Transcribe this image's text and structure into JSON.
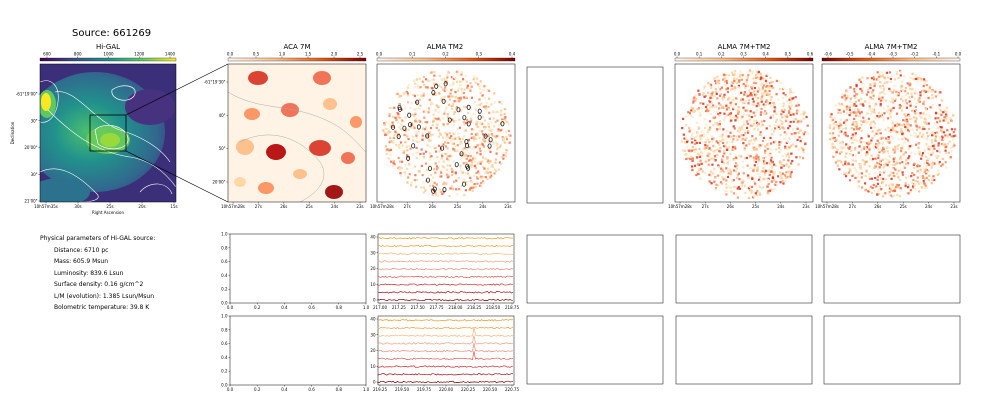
{
  "header": {
    "source": "Source: 661269"
  },
  "panels": {
    "higal": {
      "title": "Hi-GAL",
      "cbar_ticks": [
        "600",
        "800",
        "1000",
        "1200",
        "1400"
      ],
      "y_ticks": [
        "-61°19'00\"",
        "30\"",
        "20'00\"",
        "30\"",
        "21'00\""
      ],
      "x_ticks": [
        "10h57m35s",
        "30s",
        "25s",
        "20s",
        "15s"
      ],
      "xlabel": "Right Ascension",
      "ylabel": "Declination"
    },
    "aca": {
      "title": "ACA 7M",
      "cbar_ticks": [
        "0.0",
        "0.5",
        "1.0",
        "1.5",
        "2.0",
        "2.5"
      ],
      "y_ticks": [
        "-61°19'30\"",
        "40\"",
        "50\"",
        "20'00\""
      ],
      "x_ticks": [
        "10h57m28s",
        "27s",
        "26s",
        "25s",
        "24s",
        "23s"
      ]
    },
    "alma_tm2": {
      "title": "ALMA TM2",
      "cbar_ticks": [
        "0.0",
        "0.1",
        "0.2",
        "0.3",
        "0.4"
      ],
      "x_ticks": [
        "10h57m28s",
        "27s",
        "26s",
        "25s",
        "24s",
        "23s"
      ]
    },
    "alma_7m_tm2": {
      "title": "ALMA 7M+TM2",
      "cbar_ticks": [
        "0.0",
        "0.1",
        "0.2",
        "0.3",
        "0.4",
        "0.5",
        "0.6"
      ],
      "x_ticks": [
        "10h57m28s",
        "27s",
        "26s",
        "25s",
        "24s",
        "23s"
      ]
    },
    "alma_7m_tm2_b": {
      "title": "ALMA 7M+TM2",
      "cbar_ticks": [
        "-0.6",
        "-0.5",
        "-0.4",
        "-0.3",
        "-0.2",
        "-0.1",
        "0.0"
      ],
      "x_ticks": [
        "10h57m28s",
        "27s",
        "26s",
        "25s",
        "24s",
        "23s"
      ]
    }
  },
  "params": {
    "heading": "Physical parameters of Hi-GAL source:",
    "items": [
      "Distance: 6710 pc",
      "Mass: 605.9 Msun",
      "Luminosity: 839.6 Lsun",
      "Surface density: 0.16 g/cm^2",
      "L/M (evolution): 1.385 Lsun/Msun",
      "Bolometric temperature: 39.8 K"
    ]
  },
  "spectra": {
    "empty_y_ticks": [
      "0.0",
      "0.2",
      "0.4",
      "0.6",
      "0.8",
      "1.0"
    ],
    "empty_x_ticks": [
      "0.0",
      "0.2",
      "0.4",
      "0.6",
      "0.8",
      "1.0"
    ],
    "spec_y_ticks": [
      "0",
      "10",
      "20",
      "30",
      "40"
    ],
    "spec1_x_ticks": [
      "217.00",
      "217.25",
      "217.50",
      "217.75",
      "218.00",
      "218.25",
      "218.50",
      "218.75"
    ],
    "spec2_x_ticks": [
      "219.25",
      "219.50",
      "219.75",
      "220.00",
      "220.25",
      "220.50",
      "220.75"
    ],
    "spec_colors": [
      "#7f0000",
      "#a50f15",
      "#cb2a2a",
      "#e05a4a",
      "#ef8a74",
      "#f4a07a",
      "#f2b870",
      "#f0a030",
      "#e89a20"
    ]
  },
  "colors": {
    "hot": "#b30000",
    "viridis_hi": "#fde725",
    "viridis_lo": "#440154"
  }
}
